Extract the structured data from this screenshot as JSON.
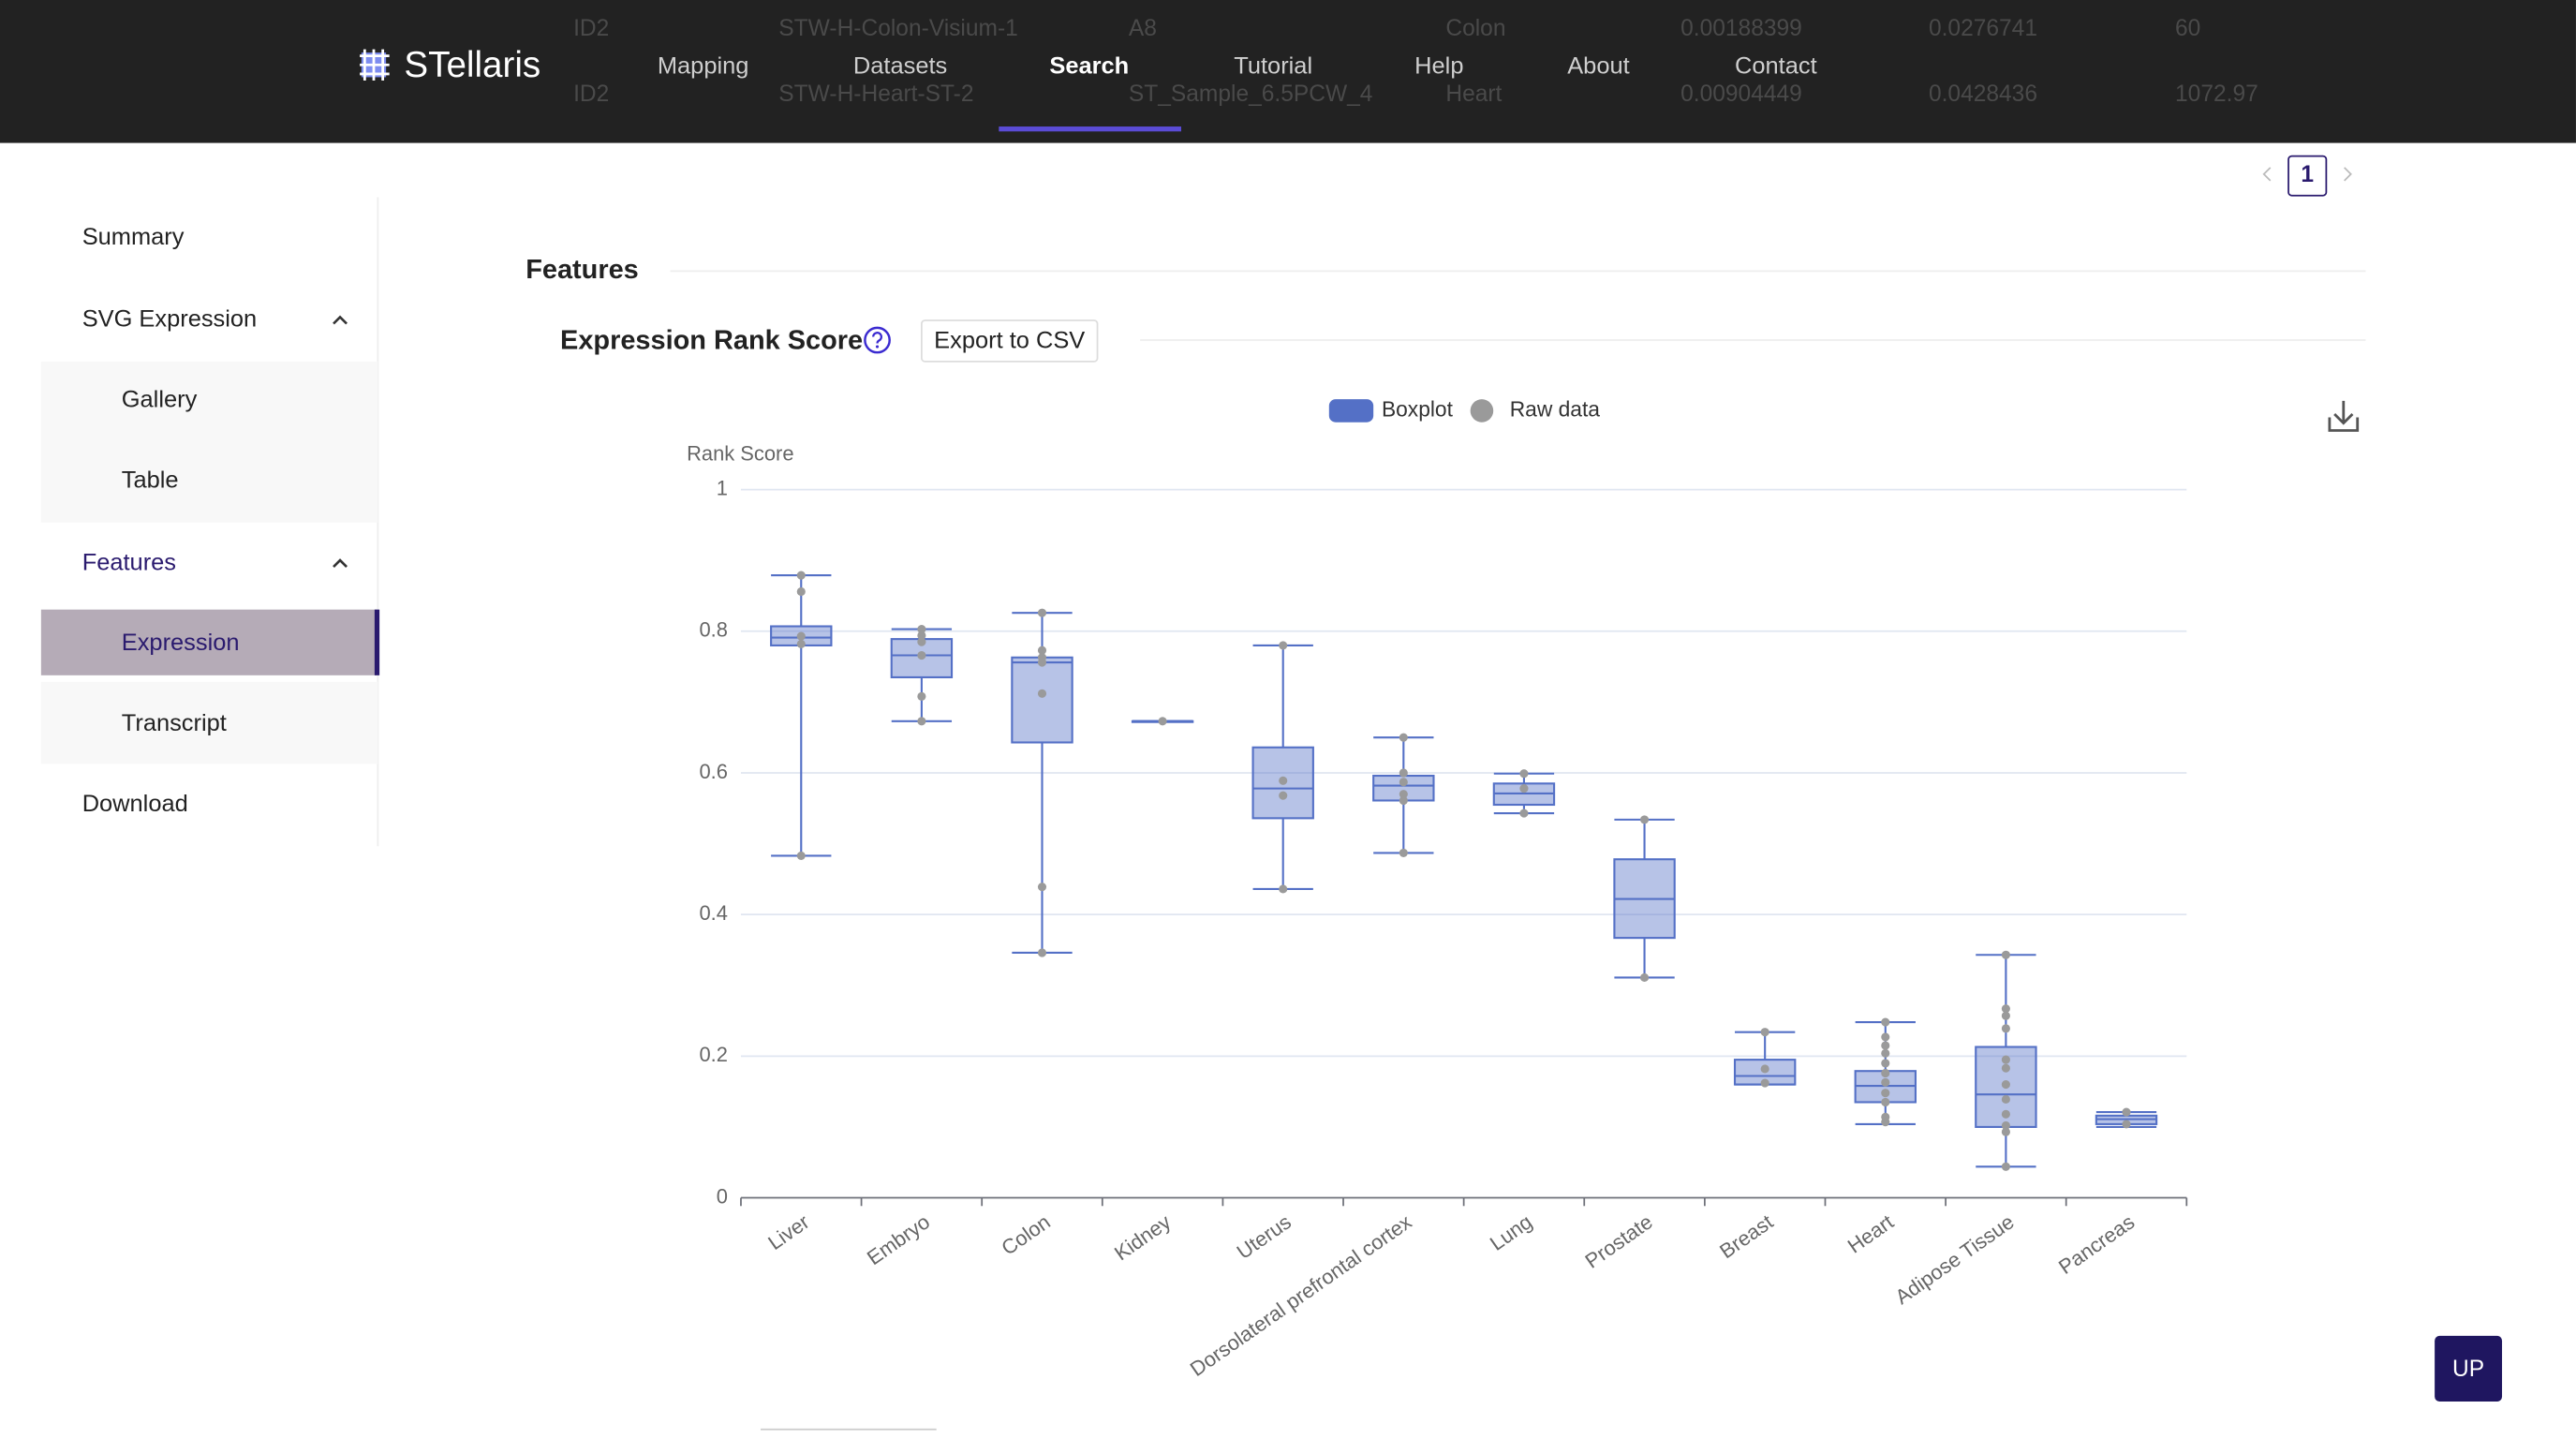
{
  "header": {
    "logo": "STellaris",
    "nav": [
      "Mapping",
      "Datasets",
      "Search",
      "Tutorial",
      "Help",
      "About",
      "Contact"
    ],
    "active": "Search"
  },
  "background_table": {
    "rows": [
      [
        "ID2",
        "STW-H-Colon-Visium-1",
        "A8",
        "Colon",
        "0.00188399",
        "0.0276741",
        "60"
      ],
      [
        "ID2",
        "STW-H-Heart-ST-2",
        "ST_Sample_6.5PCW_4",
        "Heart",
        "0.00904449",
        "0.0428436",
        "1072.97"
      ]
    ]
  },
  "sidebar": {
    "items": [
      "Summary",
      "SVG Expression",
      "Gallery",
      "Table",
      "Features",
      "Expression",
      "Transcript",
      "Download"
    ]
  },
  "pagination": {
    "page": "1"
  },
  "section": {
    "title": "Features",
    "subtitle": "Expression Rank Score",
    "button": "Export to CSV"
  },
  "up_button": "UP",
  "chart_data": {
    "type": "boxplot",
    "y_label": "Rank Score",
    "ylim": [
      0,
      1
    ],
    "yticks": [
      0,
      0.2,
      0.4,
      0.6,
      0.8,
      1
    ],
    "grid": true,
    "legend": "top",
    "categories": [
      "Liver",
      "Embryo",
      "Colon",
      "Kidney",
      "Uterus",
      "Dorsolateral prefrontal cortex",
      "Lung",
      "Prostate",
      "Breast",
      "Heart",
      "Adipose Tissue",
      "Pancreas"
    ],
    "series": [
      {
        "name": "Boxplot",
        "color": "#5470c6",
        "values": [
          {
            "min": 0.483,
            "q1": 0.78,
            "median": 0.791,
            "q3": 0.807,
            "max": 0.879
          },
          {
            "min": 0.673,
            "q1": 0.735,
            "median": 0.766,
            "q3": 0.789,
            "max": 0.803
          },
          {
            "min": 0.346,
            "q1": 0.643,
            "median": 0.756,
            "q3": 0.763,
            "max": 0.826
          },
          {
            "min": 0.673,
            "q1": 0.673,
            "median": 0.673,
            "q3": 0.673,
            "max": 0.673
          },
          {
            "min": 0.436,
            "q1": 0.536,
            "median": 0.578,
            "q3": 0.636,
            "max": 0.78
          },
          {
            "min": 0.487,
            "q1": 0.561,
            "median": 0.582,
            "q3": 0.596,
            "max": 0.65
          },
          {
            "min": 0.543,
            "q1": 0.555,
            "median": 0.571,
            "q3": 0.585,
            "max": 0.599
          },
          {
            "min": 0.311,
            "q1": 0.367,
            "median": 0.422,
            "q3": 0.478,
            "max": 0.534
          },
          {
            "min": 0.16,
            "q1": 0.16,
            "median": 0.172,
            "q3": 0.195,
            "max": 0.234
          },
          {
            "min": 0.104,
            "q1": 0.135,
            "median": 0.158,
            "q3": 0.179,
            "max": 0.248
          },
          {
            "min": 0.044,
            "q1": 0.1,
            "median": 0.146,
            "q3": 0.213,
            "max": 0.343
          },
          {
            "min": 0.1,
            "q1": 0.104,
            "median": 0.111,
            "q3": 0.116,
            "max": 0.121
          }
        ]
      },
      {
        "name": "Raw data",
        "color": "#9a9a9a",
        "values": [
          [
            0.879,
            0.856,
            0.793,
            0.782,
            0.483
          ],
          [
            0.803,
            0.794,
            0.785,
            0.766,
            0.708,
            0.673
          ],
          [
            0.826,
            0.773,
            0.763,
            0.756,
            0.712,
            0.439,
            0.346
          ],
          [
            0.673
          ],
          [
            0.78,
            0.589,
            0.568,
            0.436
          ],
          [
            0.65,
            0.6,
            0.587,
            0.57,
            0.561,
            0.487
          ],
          [
            0.599,
            0.578,
            0.543
          ],
          [
            0.534,
            0.311
          ],
          [
            0.234,
            0.182,
            0.162
          ],
          [
            0.248,
            0.227,
            0.215,
            0.204,
            0.19,
            0.176,
            0.163,
            0.148,
            0.135,
            0.114,
            0.107
          ],
          [
            0.343,
            0.267,
            0.257,
            0.239,
            0.195,
            0.183,
            0.16,
            0.139,
            0.118,
            0.102,
            0.093,
            0.044
          ],
          [
            0.121,
            0.104
          ]
        ]
      }
    ]
  }
}
